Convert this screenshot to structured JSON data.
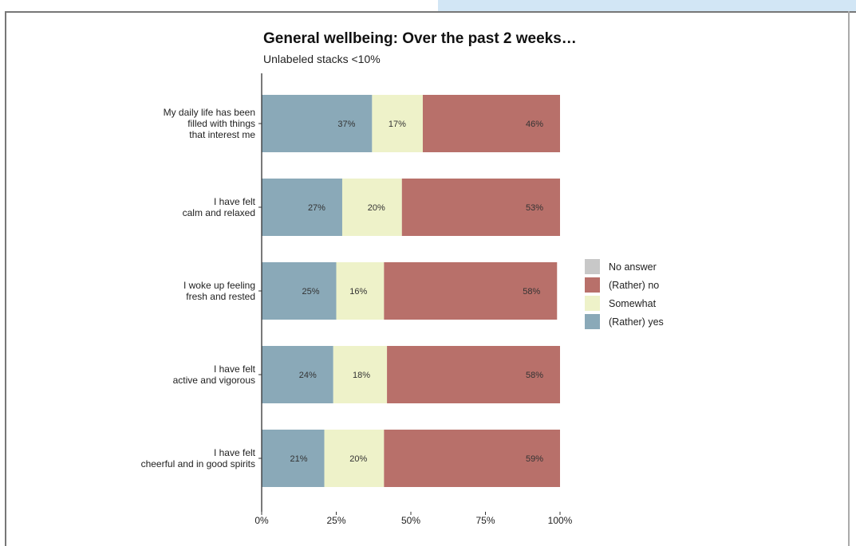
{
  "chart_data": {
    "type": "bar",
    "orientation": "horizontal",
    "stacked": true,
    "title": "General wellbeing: Over the past 2 weeks…",
    "subtitle": "Unlabeled stacks <10%",
    "xlim": [
      0,
      100
    ],
    "x_ticks": [
      "0%",
      "25%",
      "50%",
      "75%",
      "100%"
    ],
    "categories": [
      [
        "My daily life has been",
        "filled with things",
        "that interest me"
      ],
      [
        "I have felt",
        "calm and relaxed"
      ],
      [
        "I woke up feeling",
        "fresh and rested"
      ],
      [
        "I have felt",
        "active and vigorous"
      ],
      [
        "I have felt",
        "cheerful and in good spirits"
      ]
    ],
    "series": [
      {
        "name": "(Rather) yes",
        "color": "#8aa9b8",
        "values": [
          37,
          27,
          25,
          24,
          21
        ]
      },
      {
        "name": "Somewhat",
        "color": "#eef2c9",
        "values": [
          17,
          20,
          16,
          18,
          20
        ]
      },
      {
        "name": "(Rather) no",
        "color": "#b8706a",
        "values": [
          46,
          53,
          58,
          58,
          59
        ]
      },
      {
        "name": "No answer",
        "color": "#c8c8c8",
        "values": [
          0,
          0,
          0,
          0,
          0
        ]
      }
    ],
    "legend": {
      "position": "right",
      "order": [
        "No answer",
        "(Rather) no",
        "Somewhat",
        "(Rather) yes"
      ]
    },
    "grid": false
  }
}
